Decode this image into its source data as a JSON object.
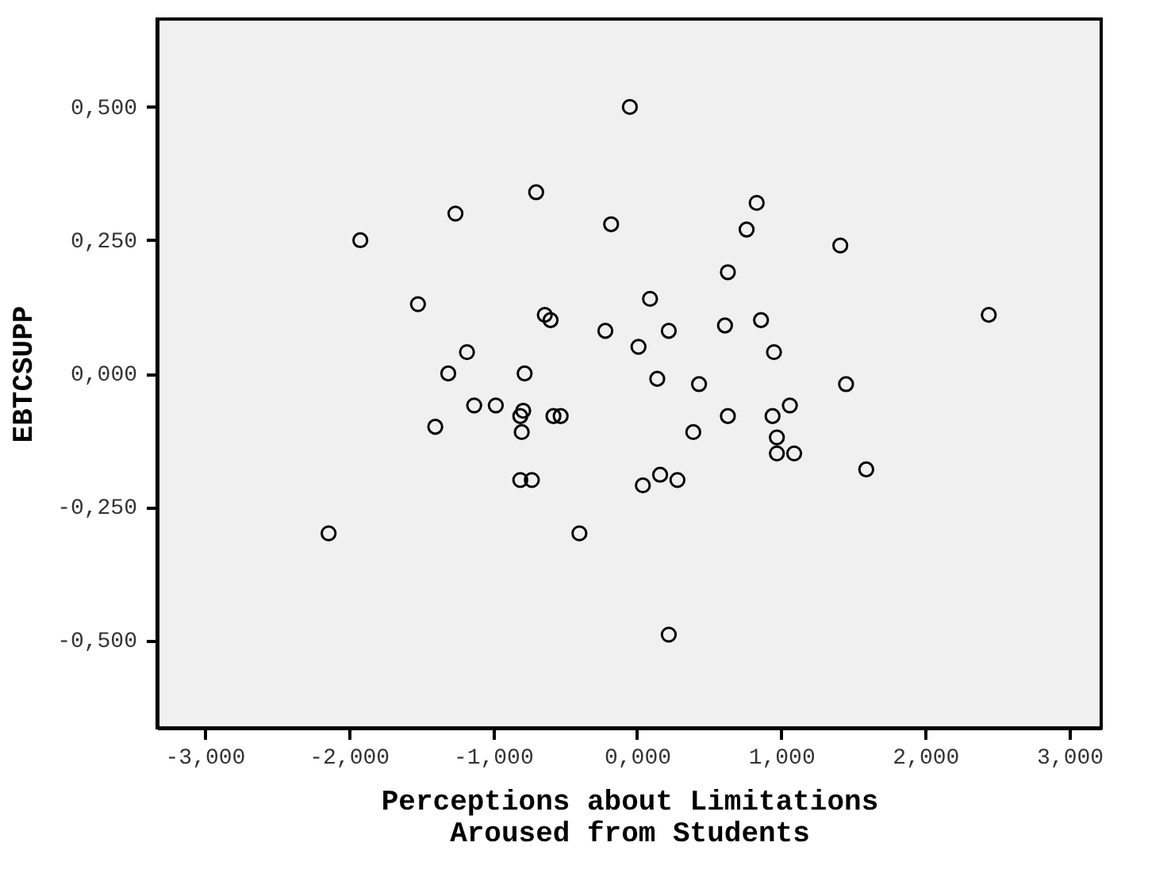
{
  "chart_data": {
    "type": "scatter",
    "xlabel": "Perceptions about Limitations\nAroused from Students",
    "ylabel": "EBTCSUPP",
    "x": [
      -0.05,
      0.83,
      0.76,
      1.41,
      0.63,
      0.09,
      2.44,
      -0.22,
      0.22,
      0.61,
      0.86,
      0.01,
      0.95,
      0.14,
      0.43,
      1.45,
      0.63,
      1.06,
      0.94,
      0.39,
      0.97,
      0.97,
      1.09,
      1.59,
      0.16,
      0.04,
      0.28,
      0.22,
      -0.4,
      -2.14,
      -0.81,
      -0.73,
      -1.92,
      -1.26,
      -0.7,
      -0.18,
      -1.52,
      -0.64,
      -0.6,
      -1.18,
      -1.31,
      -0.78,
      -1.13,
      -0.98,
      -0.79,
      -0.81,
      -0.8,
      -0.58,
      -0.53,
      -1.4
    ],
    "series": [
      {
        "color": "#000000",
        "values": [
          0.5,
          0.32,
          0.27,
          0.24,
          0.19,
          0.14,
          0.11,
          0.08,
          0.08,
          0.09,
          0.1,
          0.05,
          0.04,
          -0.01,
          -0.02,
          -0.02,
          -0.08,
          -0.06,
          -0.08,
          -0.11,
          -0.12,
          -0.15,
          -0.15,
          -0.18,
          -0.19,
          -0.21,
          -0.2,
          -0.49,
          -0.3,
          -0.3,
          -0.2,
          -0.2,
          0.25,
          0.3,
          0.34,
          0.28,
          0.13,
          0.11,
          0.1,
          0.04,
          0.0,
          0.0,
          -0.06,
          -0.06,
          -0.07,
          -0.08,
          -0.11,
          -0.08,
          -0.08,
          -0.1
        ]
      }
    ],
    "marker": "circle",
    "grid": false,
    "legend": false,
    "xlim": [
      -3.33,
      3.22
    ],
    "ylim": [
      -0.665,
      0.665
    ],
    "xticks": [
      {
        "value": -3,
        "label": "-3,000"
      },
      {
        "value": -2,
        "label": "-2,000"
      },
      {
        "value": -1,
        "label": "-1,000"
      },
      {
        "value": 0,
        "label": "0,000"
      },
      {
        "value": 1,
        "label": "1,000"
      },
      {
        "value": 2,
        "label": "2,000"
      },
      {
        "value": 3,
        "label": "3,000"
      }
    ],
    "yticks": [
      {
        "value": -0.5,
        "label": "-0,500"
      },
      {
        "value": -0.25,
        "label": "-0,250"
      },
      {
        "value": 0,
        "label": "0,000"
      },
      {
        "value": 0.25,
        "label": "0,250"
      },
      {
        "value": 0.5,
        "label": "0,500"
      }
    ]
  }
}
